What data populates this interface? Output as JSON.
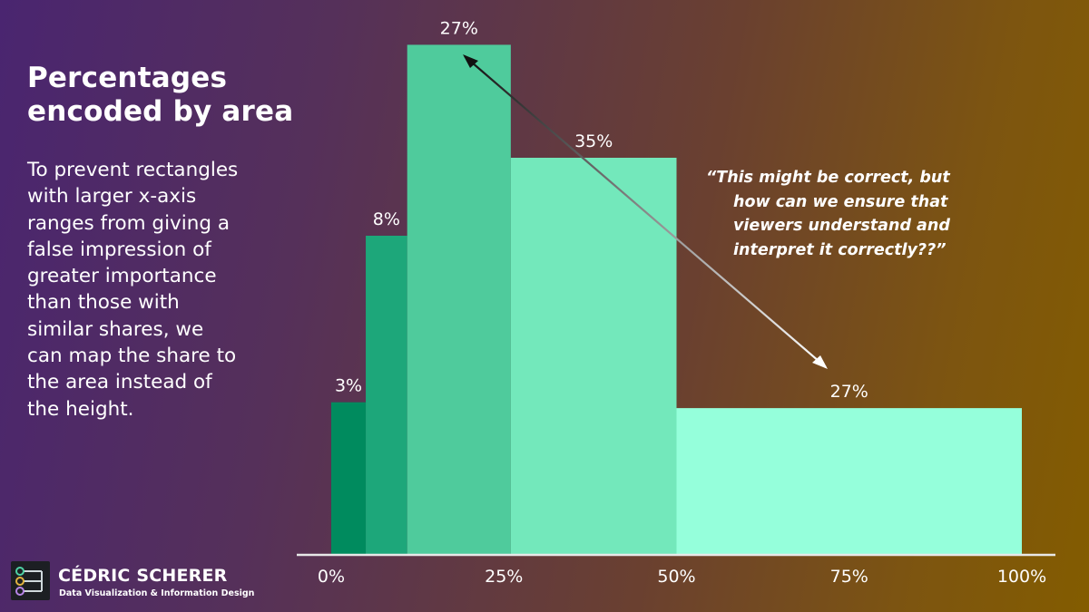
{
  "heading": {
    "title_line1": "Percentages",
    "title_line2": "encoded by area",
    "body_lines": [
      "To prevent rectangles",
      "with larger x-axis",
      "ranges from giving a",
      "false impression of",
      "greater importance",
      "than those with",
      "similar shares, we",
      "can map the share to",
      "the area instead of",
      "the height."
    ]
  },
  "annotation": {
    "lines": [
      "“This might be correct, but",
      "how can we ensure that",
      "viewers understand and",
      "interpret it correctly??”"
    ]
  },
  "brand": {
    "name": "CÉDRIC SCHERER",
    "tagline": "Data Visualization & Information Design",
    "icon": "circuit-nodes-logo-icon"
  },
  "chart_data": {
    "type": "bar",
    "encoding": "variable-width bars; share mapped to area",
    "segments": [
      {
        "x_start": 0,
        "x_end": 5,
        "share_label": "3%",
        "color": "#008b5e"
      },
      {
        "x_start": 5,
        "x_end": 11,
        "share_label": "8%",
        "color": "#1da77a"
      },
      {
        "x_start": 11,
        "x_end": 26,
        "share_label": "27%",
        "color": "#4fcb9c"
      },
      {
        "x_start": 26,
        "x_end": 50,
        "share_label": "35%",
        "color": "#73e8bb"
      },
      {
        "x_start": 50,
        "x_end": 100,
        "share_label": "27%",
        "color": "#95ffdb"
      }
    ],
    "heights": [
      0.286,
      0.6,
      0.96,
      0.747,
      0.275
    ],
    "xlim": [
      0,
      100
    ],
    "x_ticks": [
      0,
      25,
      50,
      75,
      100
    ],
    "x_tick_labels": [
      "0%",
      "25%",
      "50%",
      "75%",
      "100%"
    ],
    "arrow": {
      "from": "27%",
      "to": "27%",
      "style": "double-headed"
    },
    "axis_color": "#e8e8e8"
  }
}
